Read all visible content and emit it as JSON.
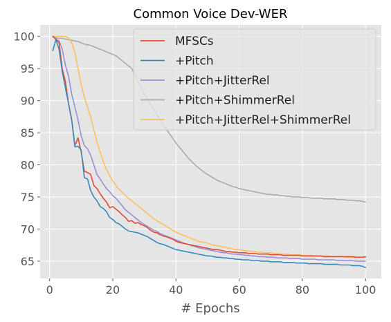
{
  "chart_data": {
    "type": "line",
    "title": "Common Voice Dev-WER",
    "xlabel": "# Epochs",
    "ylabel": "",
    "xlim": [
      -3,
      105
    ],
    "ylim": [
      62.3,
      101.8
    ],
    "xticks": [
      0,
      20,
      40,
      60,
      80,
      100
    ],
    "yticks": [
      65,
      70,
      75,
      80,
      85,
      90,
      95,
      100
    ],
    "grid": true,
    "legend_position": "top-right",
    "x": [
      1,
      2,
      3,
      4,
      5,
      6,
      7,
      8,
      9,
      10,
      11,
      12,
      13,
      14,
      15,
      16,
      17,
      18,
      19,
      20,
      21,
      22,
      23,
      24,
      25,
      26,
      27,
      28,
      29,
      30,
      31,
      32,
      33,
      34,
      35,
      36,
      37,
      38,
      39,
      40,
      41,
      42,
      43,
      44,
      45,
      46,
      47,
      48,
      49,
      50,
      51,
      52,
      53,
      54,
      55,
      56,
      57,
      58,
      59,
      60,
      61,
      62,
      63,
      64,
      65,
      66,
      67,
      68,
      69,
      70,
      71,
      72,
      73,
      74,
      75,
      76,
      77,
      78,
      79,
      80,
      81,
      82,
      83,
      84,
      85,
      86,
      87,
      88,
      89,
      90,
      91,
      92,
      93,
      94,
      95,
      96,
      97,
      98,
      99,
      100
    ],
    "series": [
      {
        "name": "MFSCs",
        "color": "#E24A33",
        "values": [
          100.0,
          99.6,
          99.0,
          95.0,
          93.0,
          89.5,
          87.0,
          83.0,
          84.2,
          82.0,
          79.0,
          78.8,
          78.5,
          76.8,
          76.3,
          75.5,
          74.8,
          74.2,
          73.3,
          73.5,
          73.1,
          72.7,
          72.2,
          71.8,
          71.2,
          71.3,
          70.9,
          71.0,
          70.7,
          70.5,
          70.2,
          69.8,
          69.5,
          69.4,
          69.1,
          68.9,
          68.8,
          68.6,
          68.4,
          68.1,
          67.9,
          67.8,
          67.7,
          67.6,
          67.5,
          67.4,
          67.3,
          67.2,
          67.1,
          67.0,
          66.9,
          66.8,
          66.8,
          66.7,
          66.6,
          66.5,
          66.5,
          66.4,
          66.4,
          66.3,
          66.3,
          66.3,
          66.2,
          66.2,
          66.2,
          66.1,
          66.1,
          66.1,
          66.1,
          66.0,
          66.0,
          66.0,
          66.0,
          65.9,
          65.9,
          65.9,
          65.9,
          65.9,
          65.9,
          65.8,
          65.8,
          65.8,
          65.8,
          65.8,
          65.8,
          65.8,
          65.7,
          65.7,
          65.7,
          65.7,
          65.7,
          65.7,
          65.7,
          65.7,
          65.7,
          65.7,
          65.6,
          65.6,
          65.6,
          65.7
        ]
      },
      {
        "name": "+Pitch",
        "color": "#348ABD",
        "values": [
          97.8,
          99.5,
          98.0,
          94.5,
          92.0,
          89.5,
          87.0,
          82.8,
          82.9,
          82.3,
          78.0,
          77.8,
          76.0,
          75.0,
          74.4,
          73.5,
          73.2,
          72.7,
          71.8,
          71.5,
          71.0,
          70.8,
          70.4,
          70.0,
          69.7,
          69.6,
          69.5,
          69.4,
          69.2,
          69.0,
          68.8,
          68.5,
          68.2,
          67.9,
          67.7,
          67.6,
          67.4,
          67.2,
          67.0,
          66.8,
          66.7,
          66.6,
          66.5,
          66.4,
          66.3,
          66.2,
          66.1,
          66.0,
          65.9,
          65.8,
          65.8,
          65.7,
          65.6,
          65.6,
          65.5,
          65.5,
          65.4,
          65.4,
          65.3,
          65.3,
          65.2,
          65.2,
          65.2,
          65.1,
          65.1,
          65.1,
          65.0,
          65.0,
          65.0,
          64.9,
          64.9,
          64.9,
          64.9,
          64.8,
          64.8,
          64.8,
          64.8,
          64.7,
          64.7,
          64.7,
          64.7,
          64.6,
          64.6,
          64.6,
          64.6,
          64.6,
          64.5,
          64.5,
          64.5,
          64.5,
          64.5,
          64.4,
          64.4,
          64.4,
          64.4,
          64.3,
          64.3,
          64.3,
          64.2,
          64.0
        ]
      },
      {
        "name": "+Pitch+JitterRel",
        "color": "#988ED5",
        "values": [
          100.0,
          99.5,
          99.3,
          98.0,
          95.5,
          93.8,
          91.0,
          89.0,
          87.0,
          84.5,
          83.0,
          82.5,
          81.5,
          80.0,
          78.5,
          77.8,
          77.0,
          76.3,
          75.8,
          75.2,
          74.8,
          74.2,
          73.6,
          73.0,
          72.6,
          72.2,
          71.8,
          71.4,
          71.0,
          70.7,
          70.4,
          70.1,
          69.8,
          69.6,
          69.3,
          69.1,
          68.9,
          68.7,
          68.5,
          68.3,
          68.1,
          67.9,
          67.7,
          67.6,
          67.4,
          67.3,
          67.1,
          67.0,
          66.9,
          66.8,
          66.7,
          66.6,
          66.5,
          66.4,
          66.3,
          66.3,
          66.2,
          66.1,
          66.1,
          66.0,
          66.0,
          65.9,
          65.9,
          65.8,
          65.8,
          65.7,
          65.7,
          65.7,
          65.6,
          65.6,
          65.6,
          65.5,
          65.5,
          65.5,
          65.5,
          65.4,
          65.4,
          65.4,
          65.4,
          65.3,
          65.3,
          65.3,
          65.3,
          65.3,
          65.2,
          65.2,
          65.2,
          65.2,
          65.2,
          65.2,
          65.1,
          65.1,
          65.1,
          65.1,
          65.1,
          65.1,
          65.0,
          65.0,
          65.0,
          65.0
        ]
      },
      {
        "name": "+Pitch+ShimmerRel",
        "color": "#AAAAAA",
        "values": [
          100.0,
          99.8,
          99.7,
          99.7,
          99.6,
          99.5,
          99.4,
          99.3,
          99.2,
          99.0,
          98.8,
          98.7,
          98.6,
          98.4,
          98.2,
          98.0,
          97.8,
          97.6,
          97.4,
          97.2,
          97.0,
          96.6,
          96.2,
          95.8,
          95.4,
          95.0,
          94.0,
          93.0,
          92.0,
          91.0,
          90.2,
          89.4,
          88.6,
          87.8,
          87.0,
          86.2,
          85.5,
          84.8,
          84.1,
          83.4,
          82.8,
          82.2,
          81.6,
          81.0,
          80.5,
          80.0,
          79.6,
          79.2,
          78.8,
          78.5,
          78.2,
          77.9,
          77.6,
          77.4,
          77.2,
          77.0,
          76.8,
          76.6,
          76.5,
          76.3,
          76.2,
          76.1,
          76.0,
          75.9,
          75.8,
          75.7,
          75.6,
          75.5,
          75.4,
          75.4,
          75.3,
          75.3,
          75.2,
          75.2,
          75.1,
          75.1,
          75.0,
          75.0,
          75.0,
          74.9,
          74.9,
          74.9,
          74.8,
          74.8,
          74.8,
          74.8,
          74.7,
          74.7,
          74.7,
          74.7,
          74.6,
          74.6,
          74.6,
          74.5,
          74.5,
          74.5,
          74.4,
          74.4,
          74.3,
          74.2
        ]
      },
      {
        "name": "+Pitch+JitterRel+ShimmerRel",
        "color": "#FBC15E",
        "values": [
          100.0,
          100.0,
          100.0,
          100.0,
          100.0,
          99.8,
          99.0,
          97.5,
          95.0,
          92.5,
          90.5,
          89.0,
          87.5,
          85.5,
          83.5,
          82.0,
          80.5,
          79.3,
          78.3,
          77.5,
          76.8,
          76.2,
          75.7,
          75.2,
          74.8,
          74.4,
          74.0,
          73.6,
          73.2,
          72.8,
          72.4,
          72.0,
          71.6,
          71.3,
          71.0,
          70.7,
          70.4,
          70.1,
          69.8,
          69.5,
          69.3,
          69.1,
          68.9,
          68.7,
          68.5,
          68.3,
          68.1,
          68.0,
          67.9,
          67.8,
          67.6,
          67.5,
          67.4,
          67.3,
          67.2,
          67.1,
          67.0,
          66.9,
          66.8,
          66.8,
          66.7,
          66.6,
          66.6,
          66.5,
          66.5,
          66.4,
          66.4,
          66.3,
          66.3,
          66.3,
          66.2,
          66.2,
          66.1,
          66.1,
          66.1,
          66.0,
          66.0,
          66.0,
          66.0,
          65.9,
          65.9,
          65.9,
          65.9,
          65.8,
          65.8,
          65.8,
          65.8,
          65.8,
          65.7,
          65.7,
          65.7,
          65.7,
          65.7,
          65.6,
          65.6,
          65.6,
          65.6,
          65.6,
          65.6,
          65.6
        ]
      }
    ]
  }
}
